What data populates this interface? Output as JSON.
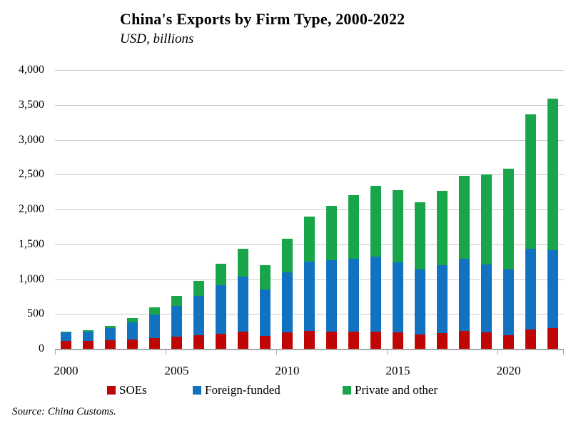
{
  "title": "China's Exports by Firm Type, 2000-2022",
  "subtitle": "USD, billions",
  "source_note": "Source: China Customs.",
  "colors": {
    "soe": "#C00505",
    "foreign": "#1272C2",
    "private": "#19A64A",
    "gridline": "#CBCBCB",
    "axis": "#A9A9A9"
  },
  "legend": {
    "items": [
      {
        "label": "SOEs",
        "color": "#C00505"
      },
      {
        "label": "Foreign-funded",
        "color": "#1272C2"
      },
      {
        "label": "Private and other",
        "color": "#19A64A"
      }
    ]
  },
  "chart_data": {
    "type": "bar",
    "stacked": true,
    "title": "China's Exports by Firm Type, 2000-2022",
    "subtitle": "USD, billions",
    "xlabel": "",
    "ylabel": "USD, billions",
    "ylim": [
      0,
      4000
    ],
    "grid": "horizontal",
    "legend_position": "bottom",
    "categories": [
      2000,
      2001,
      2002,
      2003,
      2004,
      2005,
      2006,
      2007,
      2008,
      2009,
      2010,
      2011,
      2012,
      2013,
      2014,
      2015,
      2016,
      2017,
      2018,
      2019,
      2020,
      2021,
      2022
    ],
    "series": [
      {
        "name": "SOEs",
        "color": "#C00505",
        "values": [
          118,
          113,
          123,
          137,
          155,
          170,
          193,
          220,
          248,
          183,
          235,
          257,
          250,
          244,
          250,
          240,
          210,
          230,
          252,
          240,
          200,
          278,
          295
        ]
      },
      {
        "name": "Foreign-funded",
        "color": "#1272C2",
        "values": [
          119,
          133,
          170,
          240,
          339,
          444,
          564,
          696,
          790,
          672,
          862,
          995,
          1020,
          1045,
          1078,
          1000,
          925,
          975,
          1045,
          970,
          941,
          1157,
          1125
        ]
      },
      {
        "name": "Private and other",
        "color": "#19A64A",
        "values": [
          12,
          20,
          33,
          61,
          101,
          150,
          214,
          302,
          393,
          347,
          481,
          646,
          779,
          920,
          1014,
          1033,
          963,
          1058,
          1190,
          1289,
          1449,
          1929,
          2174
        ]
      }
    ],
    "totals": [
      249,
      266,
      326,
      438,
      595,
      764,
      971,
      1218,
      1431,
      1202,
      1578,
      1898,
      2049,
      2209,
      2342,
      2273,
      2098,
      2263,
      2487,
      2499,
      2590,
      3364,
      3594
    ],
    "yticks": [
      {
        "value": 0,
        "label": "0"
      },
      {
        "value": 500,
        "label": "500"
      },
      {
        "value": 1000,
        "label": "1,000"
      },
      {
        "value": 1500,
        "label": "1,500"
      },
      {
        "value": 2000,
        "label": "2,000"
      },
      {
        "value": 2500,
        "label": "2,500"
      },
      {
        "value": 3000,
        "label": "3,000"
      },
      {
        "value": 3500,
        "label": "3,500"
      },
      {
        "value": 4000,
        "label": "4,000"
      }
    ],
    "xticks": [
      {
        "index": 0,
        "label": "2000"
      },
      {
        "index": 5,
        "label": "2005"
      },
      {
        "index": 10,
        "label": "2010"
      },
      {
        "index": 15,
        "label": "2015"
      },
      {
        "index": 20,
        "label": "2020"
      }
    ]
  }
}
